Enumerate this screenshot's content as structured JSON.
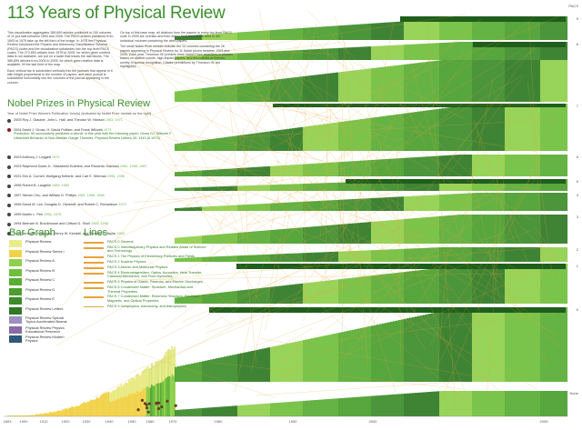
{
  "title": "113 Years of Physical Review",
  "intro": [
    "This visualization aggregates 389,899 articles published in 150 volumes of 11 journals between 1893 and 2005. The PACS articles published from 1893 to 1975 take up the left third of the image. In 1975 the Physical Review introduced the Physics and Astronomy Classification Scheme (PACS) codes and the visualization subdivides into the top-level PACS codes. The 273,853 articles from 1975 to 2005, for which given content data is not available, are put on a scale that tracks the last blocks. The 389,899 articles from 2005 to 2005, for which given citation data is available, fill the last third of the map.",
    "Each vertical bar is subdivided vertically into the journals that appear in it with height proportional to the number of papers, and each journal is subdivided horizontally into the volumes of the journal appearing in the column."
  ],
  "intro2": [
    "On top of this base map, all citations from the papers in every top-level PACS code in 2005 are overlaid and then drawn from the source area to the individual volumes containing the cited papers.",
    "The small Nobel Prize medals indicate the 24 volumes containing the 26 papers appearing in Physical Review for 11 Nobel prizes between 1993 and 2005. Each year, Thomson IS/ predicts three Nobel Prize awardees in physics based on citation counts, high-impact papers, and discoveries or themes worthy of special recognition. Citation predictions by Thomson IS/ are highlighted."
  ],
  "nobel": {
    "heading": "Nobel Prizes in Physical Review",
    "sub": "Year of Nobel Prize  Winners  Publication Year(s)  (indicated by Nobel Prize medals on the right)",
    "items": [
      {
        "text": "2005 Roy J. Glauber, John L. Hall, and Theodor W. Hänsch",
        "years": "1963, 1971",
        "extra": ""
      },
      {
        "text": "2004 David J. Gross, H. David Politzer, and Frank Wilczek",
        "years": "1973",
        "extra": "Prediction: 50 successfully predicted a winner in this year with the following paper: Gross DJ, Wilczek F. Ultraviolet Behavior of Non-Abelian Gauge Theories. Physical Review Letters 30: 1343 (8 1973)"
      },
      {
        "text": "2003 Anthony J. Leggett",
        "years": "1975",
        "extra": ""
      },
      {
        "text": "2003 Raymond Davis Jr., Masatoshi Koshiba, and Riccardo Giacconi",
        "years": "1962, 1968, 1987",
        "extra": ""
      },
      {
        "text": "2001 Eric A. Cornell, Wolfgang Ketterle, and Carl E. Wieman",
        "years": "1995, 1996",
        "extra": ""
      },
      {
        "text": "1998 Robert B. Laughlin",
        "years": "1983, 1983",
        "extra": ""
      },
      {
        "text": "1997 Steven Chu, and William D. Phillips",
        "years": "1985, 1986, 1988",
        "extra": ""
      },
      {
        "text": "1996 David M. Lee, Douglas D. Osheroff, and Robert C. Richardson",
        "years": "1972",
        "extra": ""
      },
      {
        "text": "1995 Martin L. Perl",
        "years": "1958, 1975",
        "extra": ""
      },
      {
        "text": "1994 Bertram N. Brockhouse and Clifford G. Shull",
        "years": "1955, 1958",
        "extra": ""
      },
      {
        "text": "1993 Jerome I. Friedman, Henry W. Kendall, and Richard E. Taylor",
        "years": "1969",
        "extra": ""
      }
    ]
  },
  "bar_legend": {
    "heading": "Bar Graph",
    "items": [
      {
        "label": "Physical Review",
        "color": "#e9ec8a"
      },
      {
        "label": "Physical Review Series I",
        "color": "#f2d24a"
      },
      {
        "label": "Physical Review A",
        "color": "#8fcf4c"
      },
      {
        "label": "Physical Review B",
        "color": "#6fbf3c"
      },
      {
        "label": "Physical Review C",
        "color": "#58ad34"
      },
      {
        "label": "Physical Review D",
        "color": "#4a9e2e"
      },
      {
        "label": "Physical Review E",
        "color": "#3d8c2a"
      },
      {
        "label": "Physical Review Letters",
        "color": "#2f7a24"
      },
      {
        "label": "Physical Review Special Topics Accelerated Beams",
        "color": "#9b8fc4"
      },
      {
        "label": "Physical Review Physics Educational Research",
        "color": "#8a6ba8"
      },
      {
        "label": "Physical Review Modern Physics",
        "color": "#2d5a7a"
      }
    ]
  },
  "lines_legend": {
    "heading": "Lines",
    "items": [
      "PACS 0 General",
      "PACS 0 Interdisciplinary Physics and Related Areas of Science and Technology",
      "PACS 1 The Physics of Elementary Particles and Fields",
      "PACS 2 Nuclear Physics",
      "PACS 3 Atomic and Molecular Physics",
      "PACS 4 Electromagnetism, Optics, Acoustics, Heat Transfer, Classical Mechanics, and Fluid Dynamics",
      "PACS 5 Physics of Gases, Plasmas, and Electric Discharges",
      "PACS 6 Condensed Matter: Structure, Mechanical and Thermal Properties",
      "PACS 7 Condensed Matter: Electronic Structure, Electrical, Magnetic, and Optical Properties",
      "PACS 9 Geophysics, Astronomy, and Astrophysics"
    ]
  },
  "chart_data": {
    "type": "bar",
    "title": "113 Years of Physical Review",
    "x_ticks": [
      "1893",
      "1900",
      "1910",
      "1920",
      "1930",
      "1940",
      "1950",
      "1960",
      "1970",
      "1980",
      "1990",
      "2000",
      "2005"
    ],
    "pacs_rows": [
      "PACS",
      "9",
      "8",
      "7",
      "6",
      "5",
      "4",
      "3",
      "2",
      "1",
      "0",
      "None"
    ],
    "line_color": "#e8a33a",
    "bar_colors": [
      "#f2d24a",
      "#e9ec8a",
      "#8fcf4c",
      "#6fbf3c",
      "#58ad34",
      "#4a9e2e",
      "#3d8c2a",
      "#2f7a24"
    ]
  }
}
